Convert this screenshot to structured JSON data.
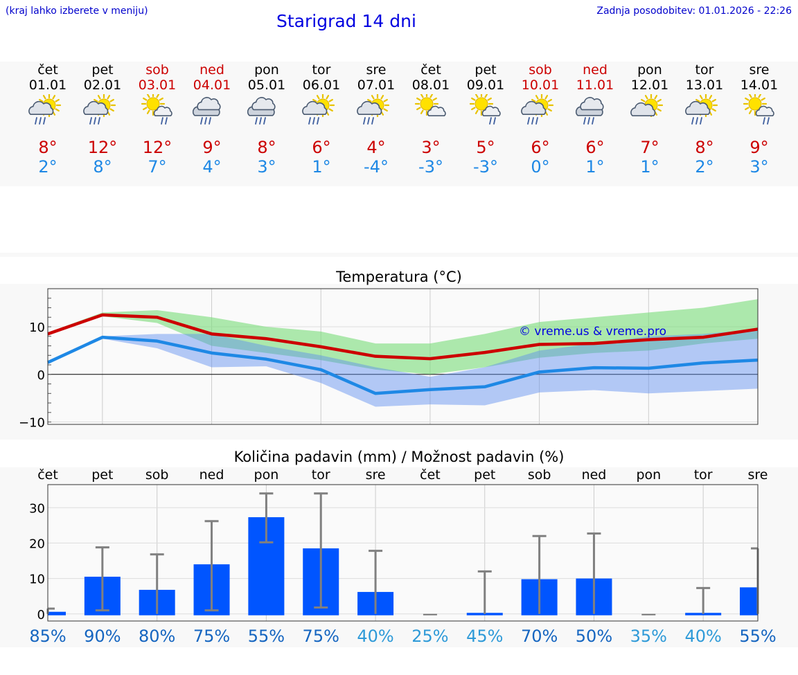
{
  "header": {
    "menu_hint": "(kraj lahko izberete v meniju)",
    "title": "Starigrad 14 dni",
    "updated": "Zadnja posodobitev: 01.01.2026 - 22:26"
  },
  "colors": {
    "max_temp": "#cc0000",
    "min_temp": "#1e88e5",
    "bar": "#0055ff",
    "weekend": "#cc0000",
    "watermark": "#0000e0"
  },
  "days": [
    {
      "name": "čet",
      "date": "01.01",
      "weekend": false,
      "icon": "sun-cloud-rain-icon",
      "tmax": "8°",
      "tmin": "2°"
    },
    {
      "name": "pet",
      "date": "02.01",
      "weekend": false,
      "icon": "sun-cloud-rain-icon",
      "tmax": "12°",
      "tmin": "8°"
    },
    {
      "name": "sob",
      "date": "03.01",
      "weekend": true,
      "icon": "sun-small-cloud-rain-icon",
      "tmax": "12°",
      "tmin": "7°"
    },
    {
      "name": "ned",
      "date": "04.01",
      "weekend": true,
      "icon": "cloud-rain-icon",
      "tmax": "9°",
      "tmin": "4°"
    },
    {
      "name": "pon",
      "date": "05.01",
      "weekend": false,
      "icon": "cloud-rain-icon",
      "tmax": "8°",
      "tmin": "3°"
    },
    {
      "name": "tor",
      "date": "06.01",
      "weekend": false,
      "icon": "sun-cloud-rain-icon",
      "tmax": "6°",
      "tmin": "1°"
    },
    {
      "name": "sre",
      "date": "07.01",
      "weekend": false,
      "icon": "sun-cloud-rain-icon",
      "tmax": "4°",
      "tmin": "-4°"
    },
    {
      "name": "čet",
      "date": "08.01",
      "weekend": false,
      "icon": "sun-small-cloud-icon",
      "tmax": "3°",
      "tmin": "-3°"
    },
    {
      "name": "pet",
      "date": "09.01",
      "weekend": false,
      "icon": "sun-small-cloud-rain-icon",
      "tmax": "5°",
      "tmin": "-3°"
    },
    {
      "name": "sob",
      "date": "10.01",
      "weekend": true,
      "icon": "sun-cloud-rain-icon",
      "tmax": "6°",
      "tmin": "0°"
    },
    {
      "name": "ned",
      "date": "11.01",
      "weekend": true,
      "icon": "cloud-rain-icon",
      "tmax": "6°",
      "tmin": "1°"
    },
    {
      "name": "pon",
      "date": "12.01",
      "weekend": false,
      "icon": "sun-cloud-icon",
      "tmax": "7°",
      "tmin": "1°"
    },
    {
      "name": "tor",
      "date": "13.01",
      "weekend": false,
      "icon": "sun-cloud-rain-icon",
      "tmax": "8°",
      "tmin": "2°"
    },
    {
      "name": "sre",
      "date": "14.01",
      "weekend": false,
      "icon": "sun-small-cloud-rain-icon",
      "tmax": "9°",
      "tmin": "3°"
    }
  ],
  "chart_data": [
    {
      "type": "line",
      "title": "Temperatura (°C)",
      "ylim": [
        -10.5,
        18
      ],
      "yticks": [
        -10,
        0,
        10
      ],
      "watermark": "© vreme.us & vreme.pro",
      "x": [
        1,
        2,
        3,
        4,
        5,
        6,
        7,
        8,
        9,
        10,
        11,
        12,
        13,
        14
      ],
      "series": [
        {
          "name": "max",
          "values": [
            8.5,
            12.5,
            12,
            8.5,
            7.5,
            5.8,
            3.8,
            3.3,
            4.6,
            6.3,
            6.5,
            7.3,
            7.8,
            9.5
          ],
          "band_low": [
            8.5,
            12.2,
            10.8,
            6.0,
            4.5,
            3.0,
            1.0,
            0.0,
            1.5,
            3.5,
            4.5,
            5.0,
            6.5,
            7.5
          ],
          "band_high": [
            8.8,
            13.0,
            13.5,
            12.0,
            10.0,
            9.0,
            6.5,
            6.5,
            8.5,
            11.0,
            12.0,
            13.0,
            14.0,
            15.8
          ]
        },
        {
          "name": "min",
          "values": [
            2.5,
            7.8,
            7.0,
            4.5,
            3.2,
            1.0,
            -4.0,
            -3.2,
            -2.6,
            0.5,
            1.4,
            1.3,
            2.4,
            3.0
          ],
          "band_low": [
            2.2,
            7.5,
            5.5,
            1.5,
            1.7,
            -1.8,
            -6.8,
            -6.3,
            -6.5,
            -3.8,
            -3.3,
            -4.0,
            -3.5,
            -3.0
          ],
          "band_high": [
            2.8,
            8.0,
            8.5,
            8.5,
            6.0,
            4.0,
            1.5,
            -0.5,
            1.5,
            5.0,
            6.5,
            8.0,
            8.5,
            9.5
          ]
        }
      ]
    },
    {
      "type": "bar",
      "title": "Količina padavin (mm) / Možnost padavin (%)",
      "ylim": [
        -2,
        36.5
      ],
      "yticks": [
        0,
        10,
        20,
        30
      ],
      "categories": [
        "čet",
        "pet",
        "sob",
        "ned",
        "pon",
        "tor",
        "sre",
        "čet",
        "pet",
        "sob",
        "ned",
        "pon",
        "tor",
        "sre"
      ],
      "values": [
        0.6,
        10.5,
        6.8,
        14.0,
        27.3,
        18.5,
        6.2,
        0,
        0.3,
        9.8,
        10.0,
        0,
        0.3,
        7.5
      ],
      "err_low": [
        0,
        1,
        0,
        1,
        20.2,
        1.8,
        0,
        0,
        0,
        0,
        0,
        0,
        0,
        0
      ],
      "err_high": [
        1.5,
        18.8,
        16.8,
        26.2,
        34.0,
        34.0,
        17.8,
        0,
        12.0,
        22.0,
        22.7,
        0,
        7.3,
        18.5
      ],
      "chance": [
        "85%",
        "90%",
        "80%",
        "75%",
        "55%",
        "75%",
        "40%",
        "25%",
        "45%",
        "70%",
        "50%",
        "35%",
        "40%",
        "55%"
      ]
    }
  ]
}
